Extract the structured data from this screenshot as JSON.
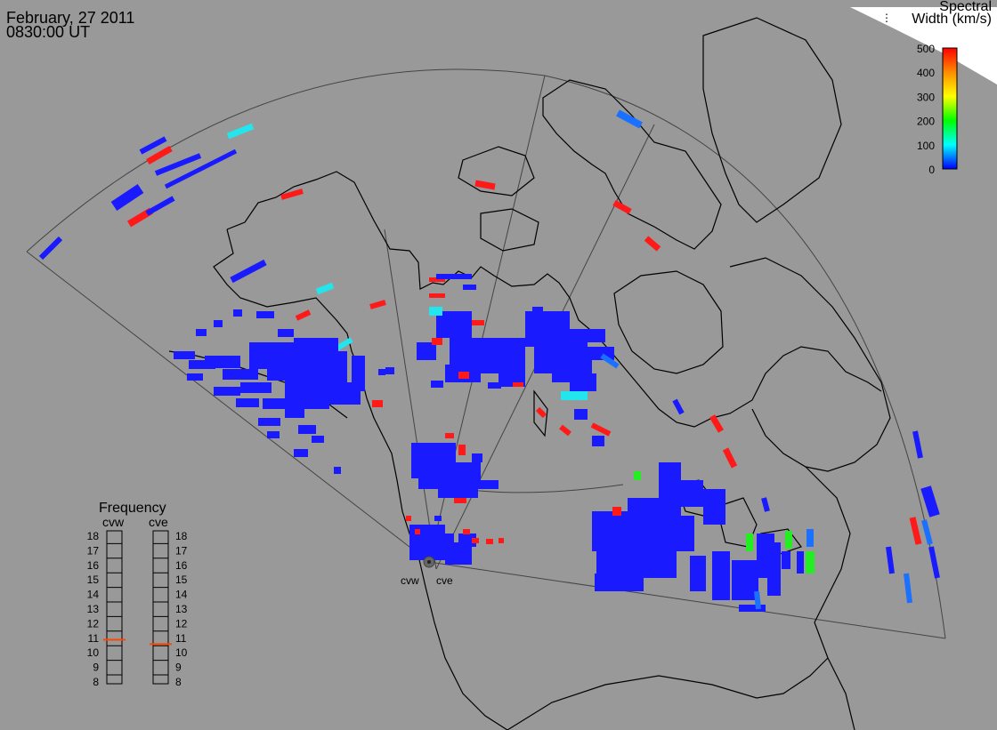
{
  "header": {
    "date": "February, 27 2011",
    "time": "0830:00 UT"
  },
  "colorbar": {
    "title_line1": "Spectral",
    "title_line2": "Width (km/s)",
    "ticks": [
      "500",
      "400",
      "300",
      "200",
      "100",
      "0"
    ],
    "colors": [
      "#ff0000",
      "#ff8c00",
      "#ffff00",
      "#00ff00",
      "#00ffff",
      "#0000ff"
    ]
  },
  "radars": {
    "west": {
      "code": "cvw",
      "frequency_mhz": 10.9
    },
    "east": {
      "code": "cve",
      "frequency_mhz": 10.6
    }
  },
  "frequency_panel": {
    "title": "Frequency",
    "col_left": "cvw",
    "col_right": "cve",
    "scale": [
      "18",
      "17",
      "16",
      "15",
      "14",
      "13",
      "12",
      "11",
      "10",
      "9",
      "8"
    ],
    "indicator_color": "#ff4500"
  },
  "map_colors": {
    "background": "#999999",
    "coast": "#000000",
    "fov": "#333333",
    "sea_ice": "#ffffff"
  }
}
